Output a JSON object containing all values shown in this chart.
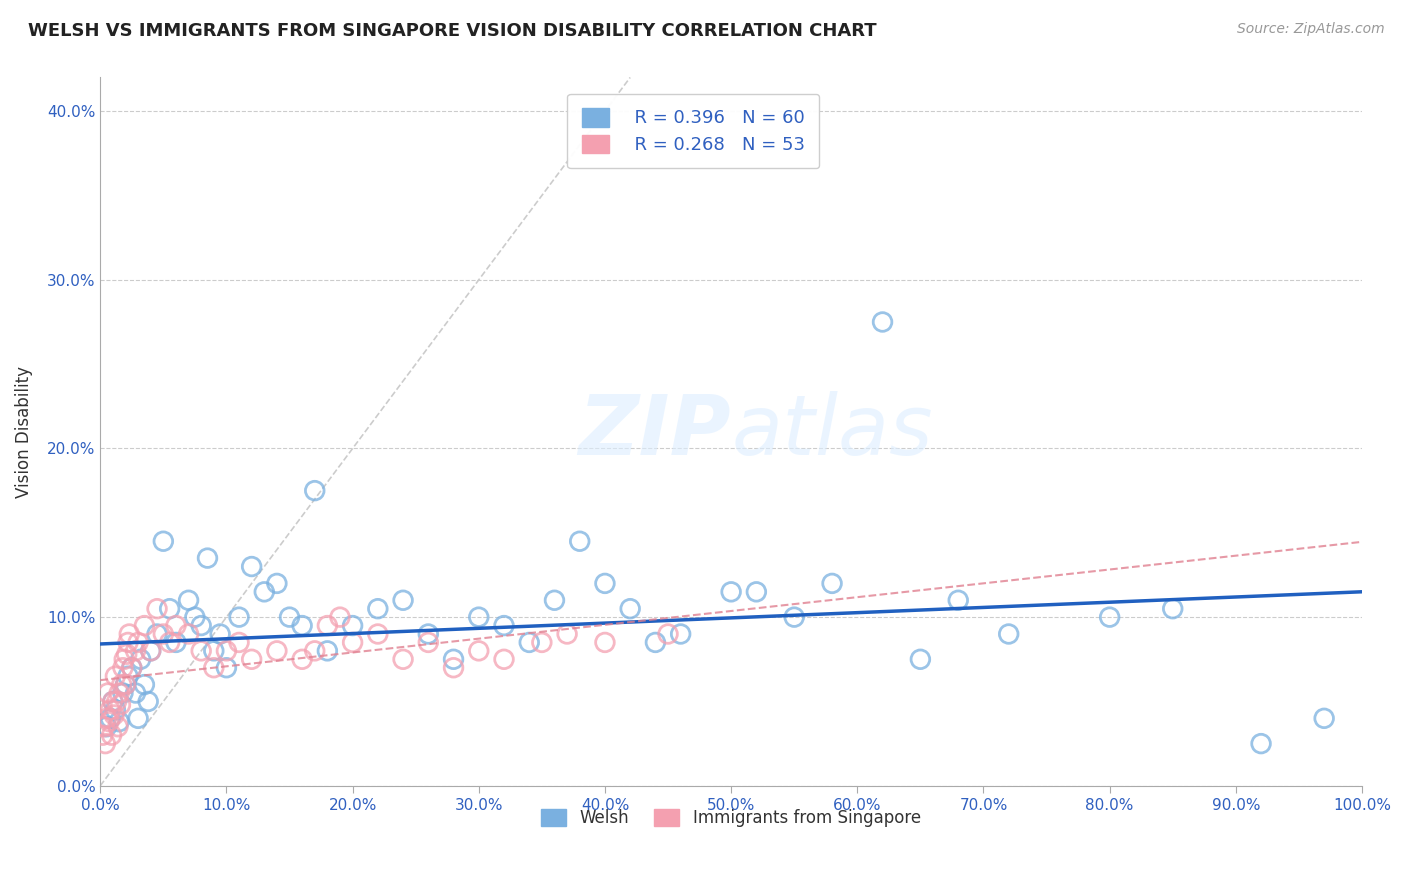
{
  "title": "WELSH VS IMMIGRANTS FROM SINGAPORE VISION DISABILITY CORRELATION CHART",
  "source": "Source: ZipAtlas.com",
  "ylabel": "Vision Disability",
  "xlim": [
    0,
    100
  ],
  "ylim": [
    0,
    42
  ],
  "xticks": [
    0,
    10,
    20,
    30,
    40,
    50,
    60,
    70,
    80,
    90,
    100
  ],
  "yticks": [
    0,
    10,
    20,
    30,
    40
  ],
  "xtick_labels": [
    "0.0%",
    "10.0%",
    "20.0%",
    "30.0%",
    "40.0%",
    "50.0%",
    "60.0%",
    "70.0%",
    "80.0%",
    "90.0%",
    "100.0%"
  ],
  "ytick_labels": [
    "0.0%",
    "10.0%",
    "20.0%",
    "30.0%",
    "40.0%"
  ],
  "welsh_R": 0.396,
  "welsh_N": 60,
  "singapore_R": 0.268,
  "singapore_N": 53,
  "welsh_edge_color": "#7ab0e0",
  "singapore_edge_color": "#f4a0b0",
  "regression_line_color_welsh": "#2060c0",
  "regression_line_color_singapore": "#e08090",
  "legend_labels": [
    "Welsh",
    "Immigrants from Singapore"
  ],
  "welsh_x": [
    0.5,
    0.8,
    1.0,
    1.2,
    1.5,
    1.8,
    2.0,
    2.2,
    2.5,
    2.8,
    3.0,
    3.2,
    3.5,
    3.8,
    4.0,
    4.5,
    5.0,
    5.5,
    6.0,
    7.0,
    7.5,
    8.0,
    8.5,
    9.0,
    9.5,
    10.0,
    11.0,
    12.0,
    13.0,
    14.0,
    15.0,
    16.0,
    17.0,
    18.0,
    20.0,
    22.0,
    24.0,
    26.0,
    28.0,
    30.0,
    32.0,
    34.0,
    36.0,
    38.0,
    40.0,
    42.0,
    44.0,
    46.0,
    50.0,
    52.0,
    55.0,
    58.0,
    62.0,
    65.0,
    68.0,
    72.0,
    80.0,
    85.0,
    92.0,
    97.0
  ],
  "welsh_y": [
    3.5,
    4.0,
    5.0,
    4.5,
    3.8,
    5.5,
    6.0,
    6.5,
    7.0,
    5.5,
    4.0,
    7.5,
    6.0,
    5.0,
    8.0,
    9.0,
    14.5,
    10.5,
    8.5,
    11.0,
    10.0,
    9.5,
    13.5,
    8.0,
    9.0,
    7.0,
    10.0,
    13.0,
    11.5,
    12.0,
    10.0,
    9.5,
    17.5,
    8.0,
    9.5,
    10.5,
    11.0,
    9.0,
    7.5,
    10.0,
    9.5,
    8.5,
    11.0,
    14.5,
    12.0,
    10.5,
    8.5,
    9.0,
    11.5,
    11.5,
    10.0,
    12.0,
    27.5,
    7.5,
    11.0,
    9.0,
    10.0,
    10.5,
    2.5,
    4.0
  ],
  "singapore_x": [
    0.2,
    0.3,
    0.4,
    0.5,
    0.6,
    0.7,
    0.8,
    0.9,
    1.0,
    1.1,
    1.2,
    1.3,
    1.4,
    1.5,
    1.6,
    1.7,
    1.8,
    1.9,
    2.0,
    2.1,
    2.2,
    2.3,
    2.5,
    2.8,
    3.0,
    3.5,
    4.0,
    4.5,
    5.0,
    5.5,
    6.0,
    7.0,
    8.0,
    9.0,
    10.0,
    11.0,
    12.0,
    14.0,
    16.0,
    17.0,
    18.0,
    19.0,
    20.0,
    22.0,
    24.0,
    26.0,
    28.0,
    30.0,
    32.0,
    35.0,
    37.0,
    40.0,
    45.0
  ],
  "singapore_y": [
    3.0,
    3.5,
    2.5,
    4.0,
    5.5,
    3.8,
    4.5,
    3.0,
    5.0,
    4.2,
    6.5,
    5.0,
    3.5,
    5.5,
    4.8,
    6.0,
    7.0,
    7.5,
    6.0,
    7.8,
    8.5,
    9.0,
    7.0,
    8.0,
    8.5,
    9.5,
    8.0,
    10.5,
    9.0,
    8.5,
    9.5,
    9.0,
    8.0,
    7.0,
    8.0,
    8.5,
    7.5,
    8.0,
    7.5,
    8.0,
    9.5,
    10.0,
    8.5,
    9.0,
    7.5,
    8.5,
    7.0,
    8.0,
    7.5,
    8.5,
    9.0,
    8.5,
    9.0
  ]
}
